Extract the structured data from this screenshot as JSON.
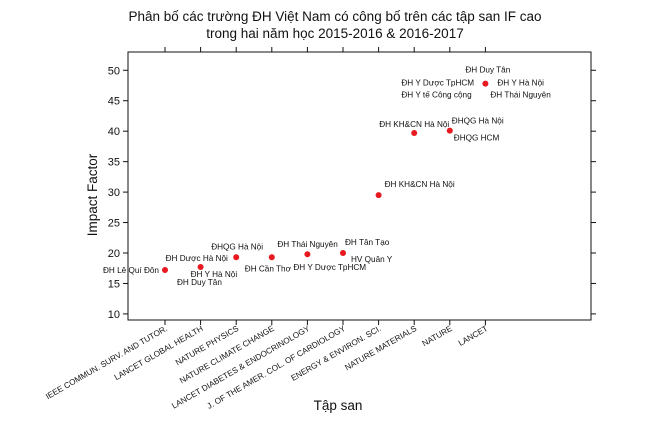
{
  "chart_data": {
    "type": "scatter",
    "title_lines": [
      "Phân bố các trường ĐH Việt Nam có công bố trên các tập san IF cao",
      "trong hai năm học 2015-2016 & 2016-2017"
    ],
    "xlabel": "Tập san",
    "ylabel": "Impact Factor",
    "ylim": [
      9,
      53
    ],
    "y_ticks": [
      10,
      15,
      20,
      25,
      30,
      35,
      40,
      45,
      50
    ],
    "categories": [
      "IEEE COMMUN. SURV. AND TUTOR.",
      "LANCET GLOBAL HEALTH",
      "NATURE PHYSICS",
      "NATURE CLIMATE CHANGE",
      "LANCET DIABETES & ENDOCRINOLOGY",
      "J. OF THE AMER. COL. OF CARDIOLOGY",
      "ENERGY & ENVIRON. SCI.",
      "NATURE MATERIALS",
      "NATURE",
      "LANCET"
    ],
    "points": [
      {
        "category": 0,
        "y": 17.2
      },
      {
        "category": 1,
        "y": 17.7
      },
      {
        "category": 2,
        "y": 19.3
      },
      {
        "category": 3,
        "y": 19.3
      },
      {
        "category": 4,
        "y": 19.8
      },
      {
        "category": 5,
        "y": 20.0
      },
      {
        "category": 6,
        "y": 29.5
      },
      {
        "category": 7,
        "y": 39.7
      },
      {
        "category": 8,
        "y": 40.1
      },
      {
        "category": 9,
        "y": 47.8
      }
    ],
    "annotations": [
      {
        "text": "ĐH Lê Quí Đôn",
        "category": 0,
        "y": 17.2,
        "dx": -62,
        "dy": 0
      },
      {
        "text": "ĐH Duy Tân",
        "category": 0,
        "y": 17.2,
        "dx": 12,
        "dy": 12
      },
      {
        "text": "ĐH Dược Hà Nội",
        "category": 1,
        "y": 17.7,
        "dx": -35,
        "dy": -9
      },
      {
        "text": "ĐH Y Hà Nội",
        "category": 1,
        "y": 17.7,
        "dx": -10,
        "dy": 7
      },
      {
        "text": "ĐHQG Hà Nội",
        "category": 2,
        "y": 19.3,
        "dx": -25,
        "dy": -11
      },
      {
        "text": "ĐH Cần Thơ",
        "category": 3,
        "y": 19.3,
        "dx": -27,
        "dy": 11
      },
      {
        "text": "ĐH Thái Nguyên",
        "category": 4,
        "y": 19.8,
        "dx": -30,
        "dy": -10
      },
      {
        "text": "ĐH Y Dược TpHCM",
        "category": 4,
        "y": 19.8,
        "dx": -14,
        "dy": 13
      },
      {
        "text": "ĐH Tân Tạo",
        "category": 5,
        "y": 20.0,
        "dx": 2,
        "dy": -11
      },
      {
        "text": "HV Quân  Y",
        "category": 5,
        "y": 20.0,
        "dx": 8,
        "dy": 6
      },
      {
        "text": "ĐH KH&CN Hà Nội",
        "category": 6,
        "y": 29.5,
        "dx": 6,
        "dy": -11
      },
      {
        "text": "ĐH KH&CN Hà Nội",
        "category": 7,
        "y": 39.7,
        "dx": -35,
        "dy": -9
      },
      {
        "text": "ĐHQG Hà Nội",
        "category": 8,
        "y": 40.1,
        "dx": 2,
        "dy": -10
      },
      {
        "text": "ĐHQG HCM",
        "category": 8,
        "y": 40.1,
        "dx": 4,
        "dy": 7
      },
      {
        "text": "ĐH Duy Tân",
        "category": 9,
        "y": 47.8,
        "dx": -20,
        "dy": -14
      },
      {
        "text": "ĐH Y Dược TpHCM",
        "category": 9,
        "y": 47.8,
        "dx": -84,
        "dy": -1
      },
      {
        "text": "ĐH Y Hà Nội",
        "category": 9,
        "y": 47.8,
        "dx": 12,
        "dy": -1
      },
      {
        "text": "ĐH Y tế Công cộng",
        "category": 9,
        "y": 47.8,
        "dx": -84,
        "dy": 11
      },
      {
        "text": "ĐH Thái Nguyên",
        "category": 9,
        "y": 47.8,
        "dx": 5,
        "dy": 11
      }
    ],
    "grid": false,
    "legend": "none"
  }
}
